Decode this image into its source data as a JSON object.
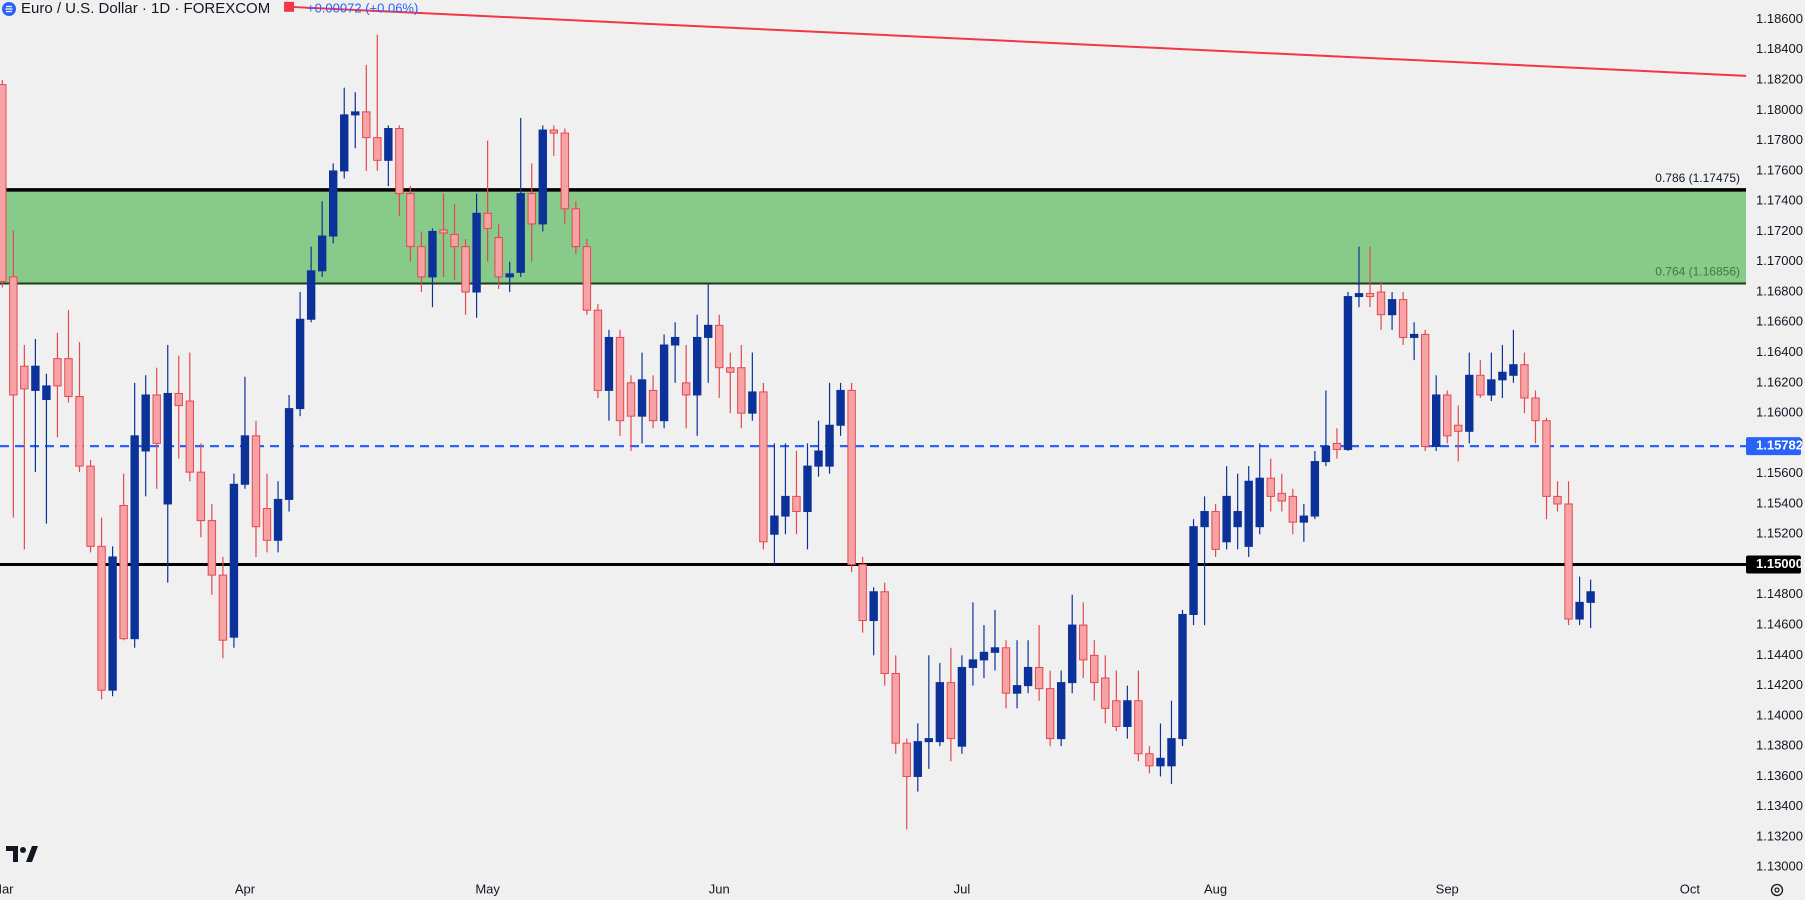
{
  "chart_data": {
    "type": "candlestick",
    "title": "Euro / U.S. Dollar · 1D · FOREXCOM",
    "subtitle": "+0.00072 (+0.06%)",
    "categories": [
      "Mar",
      null,
      null,
      null,
      null,
      null,
      null,
      null,
      null,
      null,
      null,
      null,
      null,
      null,
      null,
      null,
      null,
      null,
      null,
      null,
      null,
      null,
      "Apr",
      null,
      null,
      null,
      null,
      null,
      null,
      null,
      null,
      null,
      null,
      null,
      null,
      null,
      null,
      null,
      null,
      null,
      null,
      null,
      null,
      null,
      "May",
      null,
      null,
      null,
      null,
      null,
      null,
      null,
      null,
      null,
      null,
      null,
      null,
      null,
      null,
      null,
      null,
      null,
      null,
      null,
      null,
      "Jun",
      null,
      null,
      null,
      null,
      null,
      null,
      null,
      null,
      null,
      null,
      null,
      null,
      null,
      null,
      null,
      null,
      null,
      null,
      null,
      null,
      null,
      "Jul",
      null,
      null,
      null,
      null,
      null,
      null,
      null,
      null,
      null,
      null,
      null,
      null,
      null,
      null,
      null,
      null,
      null,
      null,
      null,
      null,
      null,
      null,
      "Aug",
      null,
      null,
      null,
      null,
      null,
      null,
      null,
      null,
      null,
      null,
      null,
      null,
      null,
      null,
      null,
      null,
      null,
      null,
      null,
      null,
      "Sep",
      null,
      null,
      null,
      null,
      null,
      null,
      null,
      null,
      null,
      null,
      null,
      null,
      null,
      null,
      null,
      null,
      null,
      null,
      null,
      null,
      null,
      "Oct"
    ],
    "open": [
      1.1817,
      1.169,
      1.1631,
      1.1615,
      1.1609,
      1.1636,
      1.1636,
      1.1611,
      1.1565,
      1.1512,
      1.1417,
      1.1539,
      1.1451,
      1.1575,
      1.1612,
      1.154,
      1.1613,
      1.1608,
      1.1561,
      1.1529,
      1.1493,
      1.1452,
      1.1553,
      1.1585,
      1.1537,
      1.1516,
      1.1543,
      1.1603,
      1.1662,
      1.1694,
      1.1717,
      1.176,
      1.1797,
      1.1799,
      1.1782,
      1.1767,
      1.1788,
      1.1745,
      1.171,
      1.169,
      1.1721,
      1.1718,
      1.171,
      1.168,
      1.1732,
      1.1716,
      1.169,
      1.1693,
      1.1745,
      1.1725,
      1.1787,
      1.1785,
      1.1735,
      1.171,
      1.1668,
      1.1615,
      1.165,
      1.162,
      1.1598,
      1.1615,
      1.1595,
      1.1645,
      1.162,
      1.1612,
      1.165,
      1.1658,
      1.163,
      1.163,
      1.16,
      1.1614,
      1.152,
      1.1532,
      1.1545,
      1.1535,
      1.1565,
      1.1565,
      1.1592,
      1.1615,
      1.15,
      1.1463,
      1.1482,
      1.1428,
      1.1382,
      1.136,
      1.1383,
      1.1383,
      1.1422,
      1.138,
      1.1432,
      1.1437,
      1.1442,
      1.1445,
      1.1415,
      1.142,
      1.1432,
      1.1418,
      1.1385,
      1.1422,
      1.146,
      1.144,
      1.1425,
      1.141,
      1.1393,
      1.141,
      1.1375,
      1.1367,
      1.1367,
      1.1385,
      1.1467,
      1.1525,
      1.1535,
      1.1515,
      1.1525,
      1.1512,
      1.1525,
      1.1557,
      1.1547,
      1.1545,
      1.1528,
      1.1532,
      1.1568,
      1.158,
      1.1576,
      1.1677,
      1.1679,
      1.168,
      1.1665,
      1.1675,
      1.165,
      1.1652,
      1.1578,
      1.1612,
      1.1592,
      1.1588,
      1.1625,
      1.1612,
      1.1622,
      1.1625,
      1.1632,
      1.161,
      1.1595,
      1.1545,
      1.154,
      1.1464,
      1.1475,
      null,
      null,
      null,
      null,
      null,
      null,
      null,
      null,
      null
    ],
    "high": [
      1.182,
      1.1721,
      1.1645,
      1.1649,
      1.1626,
      1.1653,
      1.1668,
      1.1647,
      1.1569,
      1.1531,
      1.1512,
      1.156,
      1.162,
      1.1625,
      1.163,
      1.1645,
      1.1638,
      1.164,
      1.158,
      1.154,
      1.1505,
      1.156,
      1.1624,
      1.1595,
      1.156,
      1.1555,
      1.1612,
      1.168,
      1.171,
      1.174,
      1.1765,
      1.1815,
      1.1812,
      1.183,
      1.185,
      1.179,
      1.179,
      1.175,
      1.172,
      1.1722,
      1.1745,
      1.1738,
      1.1715,
      1.1745,
      1.178,
      1.1725,
      1.17,
      1.1795,
      1.1765,
      1.179,
      1.179,
      1.1788,
      1.174,
      1.1715,
      1.1672,
      1.1655,
      1.1655,
      1.1625,
      1.164,
      1.1625,
      1.1652,
      1.166,
      1.1645,
      1.1665,
      1.1685,
      1.1665,
      1.164,
      1.1645,
      1.164,
      1.162,
      1.158,
      1.158,
      1.1575,
      1.158,
      1.1595,
      1.162,
      1.162,
      1.162,
      1.1505,
      1.1485,
      1.1488,
      1.144,
      1.1385,
      1.1395,
      1.144,
      1.1435,
      1.1445,
      1.144,
      1.1475,
      1.146,
      1.147,
      1.145,
      1.145,
      1.145,
      1.146,
      1.143,
      1.143,
      1.148,
      1.1475,
      1.145,
      1.144,
      1.143,
      1.142,
      1.143,
      1.138,
      1.1395,
      1.141,
      1.147,
      1.153,
      1.1545,
      1.154,
      1.1565,
      1.156,
      1.1565,
      1.158,
      1.157,
      1.156,
      1.155,
      1.154,
      1.1575,
      1.1615,
      1.159,
      1.168,
      1.171,
      1.171,
      1.1687,
      1.168,
      1.168,
      1.166,
      1.1655,
      1.1625,
      1.1615,
      1.1605,
      1.164,
      1.1635,
      1.164,
      1.1645,
      1.1655,
      1.164,
      1.1615,
      1.1597,
      1.1555,
      1.1555,
      1.1492,
      1.149,
      null,
      null,
      null,
      null,
      null,
      null,
      null,
      null,
      null
    ],
    "low": [
      1.1683,
      1.1531,
      1.151,
      1.1561,
      1.1527,
      1.1584,
      1.1607,
      1.1561,
      1.1508,
      1.1411,
      1.1413,
      1.145,
      1.1445,
      1.1545,
      1.155,
      1.1488,
      1.157,
      1.1555,
      1.1518,
      1.148,
      1.1438,
      1.1445,
      1.155,
      1.1505,
      1.1508,
      1.1508,
      1.1535,
      1.1598,
      1.166,
      1.169,
      1.1712,
      1.1755,
      1.1775,
      1.176,
      1.176,
      1.175,
      1.173,
      1.17,
      1.168,
      1.167,
      1.169,
      1.1688,
      1.1665,
      1.1663,
      1.17,
      1.1682,
      1.168,
      1.169,
      1.17,
      1.172,
      1.177,
      1.1725,
      1.1705,
      1.1665,
      1.161,
      1.1595,
      1.1585,
      1.1575,
      1.158,
      1.159,
      1.159,
      1.162,
      1.159,
      1.1585,
      1.162,
      1.161,
      1.16,
      1.159,
      1.1595,
      1.151,
      1.15,
      1.152,
      1.152,
      1.151,
      1.1558,
      1.156,
      1.1585,
      1.1495,
      1.1455,
      1.144,
      1.142,
      1.1375,
      1.1325,
      1.135,
      1.1365,
      1.138,
      1.137,
      1.1375,
      1.142,
      1.1425,
      1.143,
      1.1405,
      1.1405,
      1.1415,
      1.141,
      1.138,
      1.138,
      1.1415,
      1.1425,
      1.141,
      1.1395,
      1.139,
      1.1385,
      1.137,
      1.1362,
      1.136,
      1.1355,
      1.138,
      1.146,
      1.146,
      1.1505,
      1.151,
      1.151,
      1.1505,
      1.152,
      1.1535,
      1.1535,
      1.152,
      1.1515,
      1.153,
      1.1565,
      1.157,
      1.1575,
      1.167,
      1.167,
      1.1655,
      1.1655,
      1.1645,
      1.1635,
      1.1575,
      1.1575,
      1.158,
      1.1568,
      1.158,
      1.161,
      1.1608,
      1.161,
      1.162,
      1.16,
      1.158,
      1.153,
      1.1535,
      1.146,
      1.146,
      1.1458,
      null,
      null,
      null,
      null,
      null,
      null,
      null,
      null,
      null
    ],
    "close": [
      1.1687,
      1.1612,
      1.1616,
      1.1631,
      1.1618,
      1.1618,
      1.1611,
      1.1565,
      1.1512,
      1.1417,
      1.1505,
      1.1451,
      1.1585,
      1.1612,
      1.158,
      1.1613,
      1.1605,
      1.1561,
      1.1529,
      1.1493,
      1.145,
      1.1553,
      1.1585,
      1.1525,
      1.1516,
      1.1543,
      1.1603,
      1.1662,
      1.1694,
      1.1717,
      1.176,
      1.1797,
      1.1799,
      1.1782,
      1.1767,
      1.1788,
      1.1745,
      1.171,
      1.169,
      1.172,
      1.1719,
      1.171,
      1.168,
      1.1732,
      1.1722,
      1.169,
      1.1692,
      1.1745,
      1.1725,
      1.1787,
      1.1785,
      1.1735,
      1.171,
      1.1668,
      1.1615,
      1.165,
      1.1595,
      1.1598,
      1.1622,
      1.1595,
      1.1645,
      1.165,
      1.1612,
      1.165,
      1.1658,
      1.163,
      1.1627,
      1.16,
      1.1614,
      1.1515,
      1.1532,
      1.1545,
      1.1535,
      1.1565,
      1.1575,
      1.1592,
      1.1615,
      1.15,
      1.1463,
      1.1482,
      1.1428,
      1.1382,
      1.136,
      1.1383,
      1.1385,
      1.1422,
      1.1385,
      1.1432,
      1.1437,
      1.1442,
      1.1445,
      1.1415,
      1.142,
      1.1432,
      1.1418,
      1.1385,
      1.1422,
      1.146,
      1.1437,
      1.1422,
      1.1405,
      1.1393,
      1.141,
      1.1375,
      1.1367,
      1.1372,
      1.1385,
      1.1467,
      1.1525,
      1.1535,
      1.151,
      1.1545,
      1.1535,
      1.1555,
      1.1557,
      1.1545,
      1.1542,
      1.1528,
      1.1532,
      1.1568,
      1.1578,
      1.1576,
      1.1677,
      1.1679,
      1.1677,
      1.1665,
      1.1675,
      1.165,
      1.1652,
      1.1578,
      1.1612,
      1.1585,
      1.1588,
      1.1625,
      1.1612,
      1.1622,
      1.1627,
      1.1632,
      1.161,
      1.1595,
      1.1545,
      1.154,
      1.1464,
      1.1475,
      1.1482,
      null,
      null,
      null,
      null,
      null,
      null,
      null,
      null,
      null
    ],
    "ylim": [
      1.12916,
      1.18729
    ],
    "yticks": [
      {
        "value": 1.13,
        "label": "1.13000"
      },
      {
        "value": 1.132,
        "label": "1.13200"
      },
      {
        "value": 1.134,
        "label": "1.13400"
      },
      {
        "value": 1.136,
        "label": "1.13600"
      },
      {
        "value": 1.138,
        "label": "1.13800"
      },
      {
        "value": 1.14,
        "label": "1.14000"
      },
      {
        "value": 1.142,
        "label": "1.14200"
      },
      {
        "value": 1.144,
        "label": "1.14400"
      },
      {
        "value": 1.146,
        "label": "1.14600"
      },
      {
        "value": 1.148,
        "label": "1.14800"
      },
      {
        "value": 1.15,
        "label": "1.15000"
      },
      {
        "value": 1.152,
        "label": "1.15200"
      },
      {
        "value": 1.154,
        "label": "1.15400"
      },
      {
        "value": 1.156,
        "label": "1.15600"
      },
      {
        "value": 1.158,
        "label": "1.15800"
      },
      {
        "value": 1.16,
        "label": "1.16000"
      },
      {
        "value": 1.162,
        "label": "1.16200"
      },
      {
        "value": 1.164,
        "label": "1.16400"
      },
      {
        "value": 1.166,
        "label": "1.16600"
      },
      {
        "value": 1.168,
        "label": "1.16800"
      },
      {
        "value": 1.17,
        "label": "1.17000"
      },
      {
        "value": 1.172,
        "label": "1.17200"
      },
      {
        "value": 1.174,
        "label": "1.17400"
      },
      {
        "value": 1.176,
        "label": "1.17600"
      },
      {
        "value": 1.178,
        "label": "1.17800"
      },
      {
        "value": 1.18,
        "label": "1.18000"
      },
      {
        "value": 1.182,
        "label": "1.18200"
      },
      {
        "value": 1.184,
        "label": "1.18400"
      },
      {
        "value": 1.186,
        "label": "1.18600"
      }
    ],
    "grid": false,
    "colors": {
      "up": "#0c3299",
      "down": "#f7a3a6",
      "down_border": "#e5484f"
    },
    "zone": {
      "from": 1.16856,
      "to": 1.17475,
      "color": "#81c784"
    },
    "fib_levels": [
      {
        "value": 1.17475,
        "label": "0.786 (1.17475)",
        "color": "#000000",
        "label_color": "#131722"
      },
      {
        "value": 1.16856,
        "label": "0.764 (1.16856)",
        "color": "#1b3d1b",
        "label_color": "#3e7a3e"
      }
    ],
    "horizontal_lines": [
      {
        "value": 1.15,
        "label": "1.15000",
        "color": "#000000",
        "style": "solid"
      },
      {
        "value": 1.15782,
        "label": "1.15782",
        "color": "#2962ff",
        "style": "dashed"
      }
    ],
    "trendline": {
      "x": [
        26,
        158.1
      ],
      "y": [
        1.18684,
        1.18228
      ],
      "color": "#f23645"
    }
  }
}
